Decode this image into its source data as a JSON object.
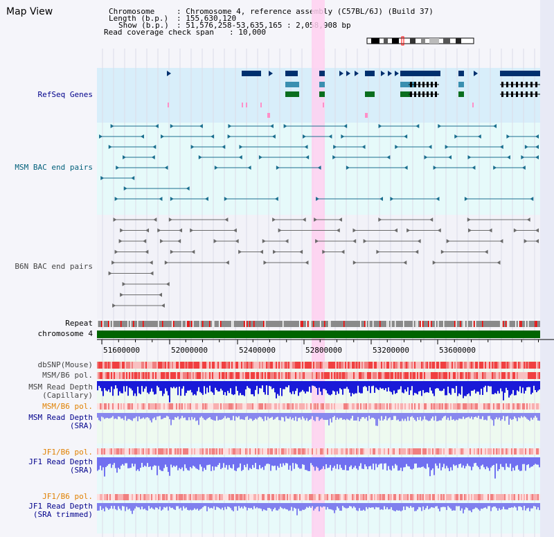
{
  "panel_title": "Map View",
  "info": {
    "chromosome_label": "Chromosome",
    "chromosome_value": ": Chromosome 4, reference assembly (C57BL/6J) (Build 37)",
    "length_label": "Length (b.p.)",
    "length_value": ": 155,630,120",
    "show_label": "Show (b.p.)",
    "show_value": ": 51,576,258-53,635,165 : 2,058,908 bp",
    "coverage_label": "Read coverage check span",
    "coverage_value": ": 10,000"
  },
  "tracks": {
    "refseq": "RefSeq Genes",
    "msm_bac": "MSM BAC end pairs",
    "b6n_bac": "B6N BAC end pairs",
    "repeat": "Repeat",
    "chromosome": "chromosome 4",
    "dbsnp": "dbSNP(Mouse)",
    "msm_pol": "MSM/B6 pol.",
    "msm_depth_cap": "MSM Read Depth\n(Capillary)",
    "msm_pol2": "MSM/B6 pol.",
    "msm_depth_sra": "MSM Read Depth\n(SRA)",
    "jf1_pol": "JF1/B6 pol.",
    "jf1_depth_sra": "JF1 Read Depth\n(SRA)",
    "jf1_pol2": "JF1/B6 pol.",
    "jf1_depth_trim": "JF1 Read Depth\n(SRA trimmed)"
  },
  "ruler_ticks": [
    "51600000",
    "52000000",
    "52400000",
    "52800000",
    "53200000",
    "53600000"
  ],
  "colors": {
    "label_blue": "#00008b",
    "label_teal": "#005f7a",
    "label_gray": "#444444",
    "label_orange": "#e08000",
    "chromosome_green": "#006400",
    "highlight": "#ffd0f0"
  }
}
